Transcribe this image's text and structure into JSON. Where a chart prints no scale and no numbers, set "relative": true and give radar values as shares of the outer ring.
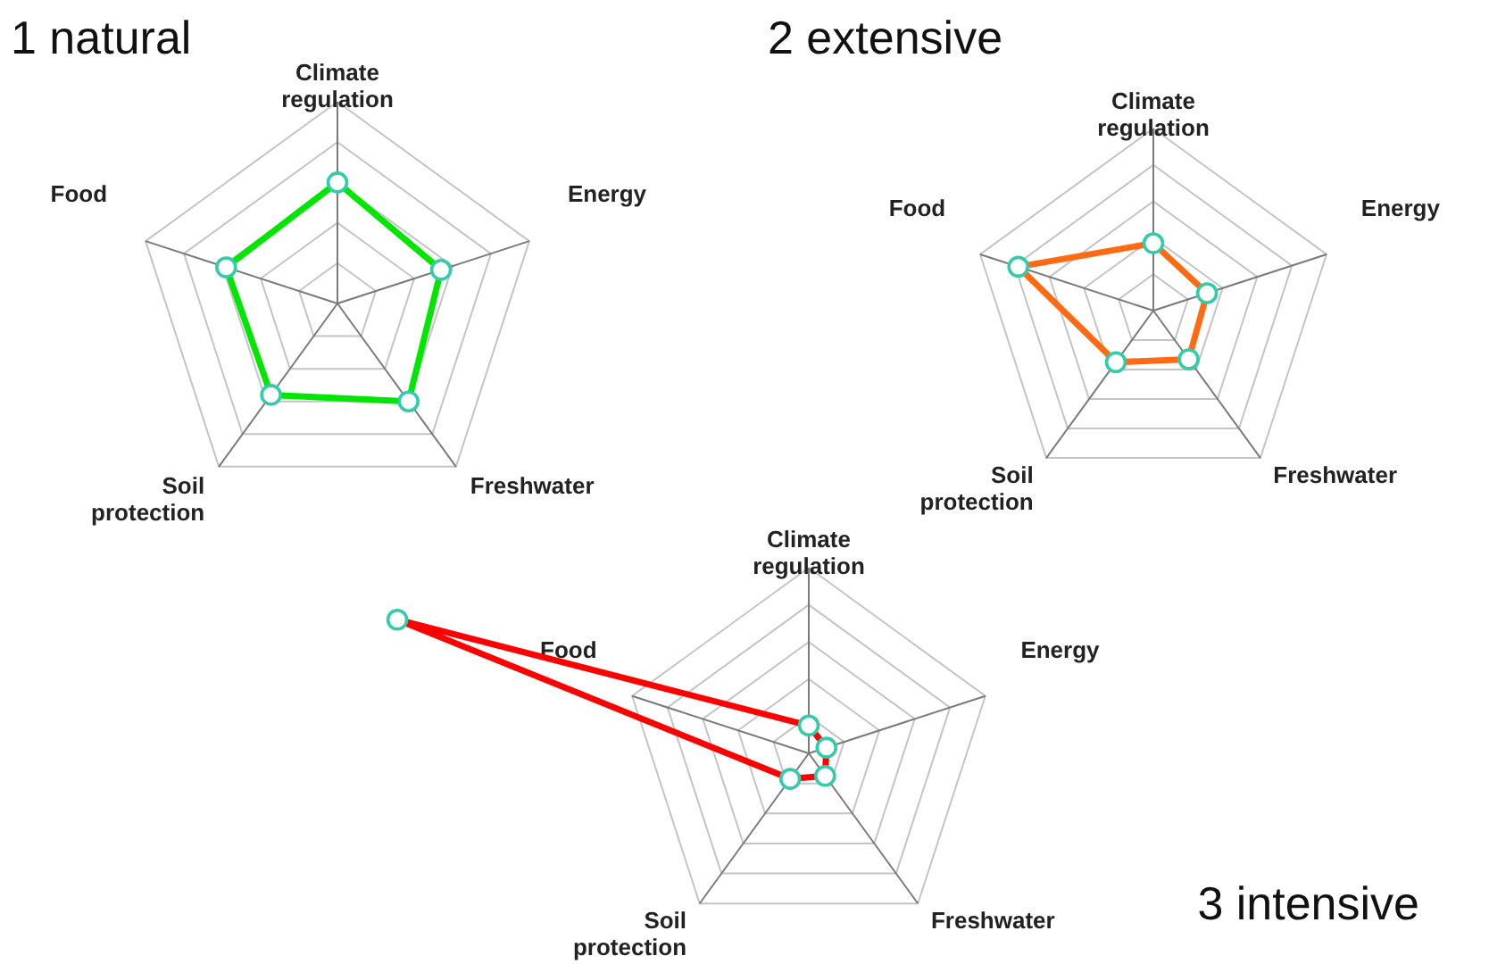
{
  "chart_data": [
    {
      "type": "radar",
      "title": "1 natural",
      "categories": [
        "Climate regulation",
        "Energy",
        "Freshwater",
        "Soil protection",
        "Food"
      ],
      "relative": true,
      "grid": true,
      "marker": "circle",
      "series": [
        {
          "color": "#00e600",
          "values": [
            0.6,
            0.54,
            0.6,
            0.56,
            0.58
          ]
        }
      ]
    },
    {
      "type": "radar",
      "title": "2 extensive",
      "categories": [
        "Climate regulation",
        "Energy",
        "Freshwater",
        "Soil protection",
        "Food"
      ],
      "relative": true,
      "grid": true,
      "marker": "circle",
      "series": [
        {
          "color": "#ff6a13",
          "values": [
            0.37,
            0.31,
            0.33,
            0.35,
            0.78
          ]
        }
      ]
    },
    {
      "type": "radar",
      "title": "3 intensive",
      "categories": [
        "Climate regulation",
        "Energy",
        "Freshwater",
        "Soil protection",
        "Food"
      ],
      "relative": true,
      "grid": true,
      "marker": "circle",
      "series": [
        {
          "color": "#ff0000",
          "values": [
            0.15,
            0.1,
            0.15,
            0.17,
            2.33
          ]
        }
      ]
    }
  ]
}
